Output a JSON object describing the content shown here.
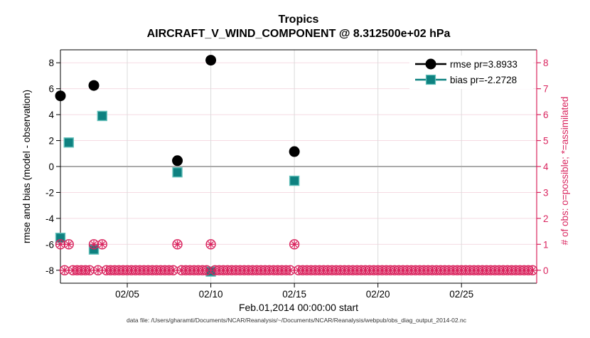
{
  "figure": {
    "title": "Tropics",
    "subtitle": "AIRCRAFT_V_WIND_COMPONENT @ 8.312500e+02 hPa",
    "footer": "data file: /Users/gharamti/Documents/NCAR/Reanalysis/~/Documents/NCAR/Reanalysis/webpub/obs_diag_output_2014-02.nc"
  },
  "colors": {
    "pink": "#D9245E",
    "teal_fill": "#0E8180",
    "teal_edge": "#63C0BA",
    "black": "#000000",
    "grid_horizontal": "#F5DBE3",
    "grid_vertical": "#DBDBDB",
    "zero_line": "#AAAAAA",
    "legend_bg": "#FFFFFF",
    "footer_text": "#333333"
  },
  "chart_data": {
    "type": "scatter",
    "title": "Tropics",
    "subtitle": "AIRCRAFT_V_WIND_COMPONENT @ 8.312500e+02 hPa",
    "xlabel": "Feb.01,2014 00:00:00 start",
    "ylabel_left": "rmse and bias (model - observation)",
    "ylabel_right": "# of obs: o=possible; *=assimilated",
    "xlim_days": [
      1,
      29.5
    ],
    "ylim_left": [
      -9,
      9
    ],
    "ylim_right": [
      -0.5,
      8.5
    ],
    "grid": true,
    "xticks": [
      {
        "day": 5,
        "label": "02/05"
      },
      {
        "day": 10,
        "label": "02/10"
      },
      {
        "day": 15,
        "label": "02/15"
      },
      {
        "day": 20,
        "label": "02/20"
      },
      {
        "day": 25,
        "label": "02/25"
      }
    ],
    "yticks_left": [
      8,
      6,
      4,
      2,
      0,
      -2,
      -4,
      -6,
      -8
    ],
    "yticks_right": [
      8,
      7,
      6,
      5,
      4,
      3,
      2,
      1,
      0
    ],
    "zero_line_value": 0,
    "legend_position": "top-right-inside",
    "legend": [
      {
        "label": "rmse pr=3.8933",
        "marker": "filled-circle",
        "color": "#000000"
      },
      {
        "label": "bias pr=-2.2728",
        "marker": "filled-square",
        "color": "#0E8180"
      }
    ],
    "series": [
      {
        "name": "rmse pr=3.8933",
        "axis": "left",
        "marker": "filled-circle",
        "color": "#000000",
        "points": [
          {
            "day": 1.0,
            "value": 5.45
          },
          {
            "day": 3.0,
            "value": 6.25
          },
          {
            "day": 8.0,
            "value": 0.45
          },
          {
            "day": 10.0,
            "value": 8.2
          },
          {
            "day": 15.0,
            "value": 1.15
          }
        ]
      },
      {
        "name": "bias pr=-2.2728",
        "axis": "left",
        "marker": "filled-square",
        "color": "#0E8180",
        "points": [
          {
            "day": 1.0,
            "value": -5.5
          },
          {
            "day": 1.5,
            "value": 1.85
          },
          {
            "day": 3.0,
            "value": -6.4
          },
          {
            "day": 3.5,
            "value": 3.9
          },
          {
            "day": 8.0,
            "value": -0.45
          },
          {
            "day": 10.0,
            "value": -8.1
          },
          {
            "day": 15.0,
            "value": -1.1
          }
        ]
      },
      {
        "name": "# of obs: o=possible; *=assimilated",
        "axis": "right",
        "marker": "circled-asterisk",
        "color": "#D9245E",
        "count_one_days": [
          1.0,
          1.5,
          3.0,
          3.5,
          8.0,
          10.0,
          15.0
        ],
        "count_zero_days": {
          "start": 1.0,
          "end": 29.25,
          "step": 0.25,
          "exclude": [
            1.0,
            1.5,
            3.0,
            3.5,
            8.0,
            10.0,
            15.0
          ]
        }
      }
    ]
  }
}
